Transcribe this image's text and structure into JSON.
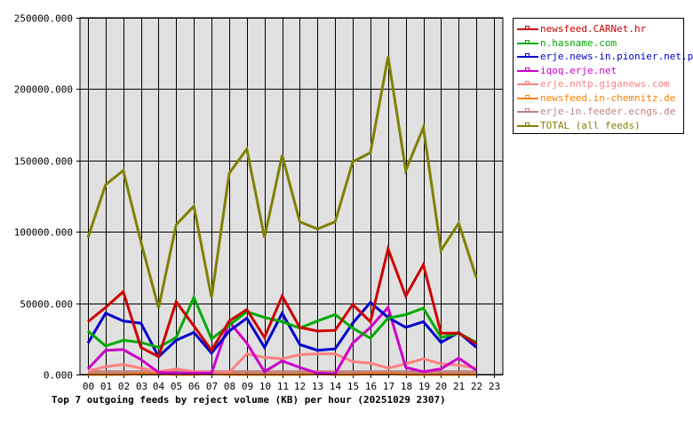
{
  "chart_data": {
    "type": "line",
    "title": "Top 7 outgoing feeds by reject volume (KB) per hour (20251029 2307)",
    "xlabel": "",
    "ylabel": "",
    "ylim": [
      0,
      250000
    ],
    "yticks": [
      "0.000",
      "50000.000",
      "100000.000",
      "150000.000",
      "200000.000",
      "250000.000"
    ],
    "ytick_values": [
      0,
      50000,
      100000,
      150000,
      200000,
      250000
    ],
    "categories": [
      "00",
      "01",
      "02",
      "03",
      "04",
      "05",
      "06",
      "07",
      "08",
      "09",
      "10",
      "11",
      "12",
      "13",
      "14",
      "15",
      "16",
      "17",
      "18",
      "19",
      "20",
      "21",
      "22",
      "23"
    ],
    "grid": true,
    "legend_position": "right",
    "series": [
      {
        "name": "newsfeed.CARNet.hr",
        "color": "#cc0000",
        "values": [
          37000,
          47000,
          58000,
          19000,
          12500,
          51000,
          34000,
          17000,
          37500,
          45500,
          26000,
          55000,
          33000,
          30500,
          31000,
          49000,
          37000,
          88000,
          55000,
          77000,
          29000,
          29000,
          21500
        ]
      },
      {
        "name": "n.hasname.com",
        "color": "#00aa00",
        "values": [
          30500,
          20000,
          24000,
          22500,
          19000,
          26000,
          54000,
          25000,
          34500,
          44000,
          40000,
          37000,
          32500,
          37500,
          42000,
          32500,
          25500,
          39500,
          42000,
          46500,
          26000,
          29000,
          22500
        ]
      },
      {
        "name": "erje.news-in.pionier.net.pl",
        "color": "#0000cc",
        "values": [
          22000,
          43000,
          37500,
          36000,
          12500,
          24000,
          29500,
          15000,
          30500,
          39500,
          19000,
          43000,
          21000,
          17000,
          18000,
          36000,
          50500,
          40000,
          33000,
          37000,
          22500,
          29500,
          19000
        ]
      },
      {
        "name": "iqoq.erje.net",
        "color": "#cc00cc",
        "values": [
          4000,
          17000,
          17500,
          10500,
          1500,
          1000,
          1000,
          1000,
          37000,
          22000,
          2000,
          9500,
          5000,
          1000,
          500,
          22000,
          33000,
          47000,
          5000,
          2000,
          4000,
          11500,
          3000
        ]
      },
      {
        "name": "erje.nntp.giganews.com",
        "color": "#ff8080",
        "values": [
          2500,
          5500,
          7000,
          4500,
          2000,
          4000,
          2000,
          1500,
          1500,
          14500,
          12000,
          11000,
          14000,
          14500,
          14500,
          9000,
          8000,
          4500,
          7500,
          11000,
          7500,
          6500,
          4500
        ]
      },
      {
        "name": "newsfeed.in-chemnitz.de",
        "color": "#ff8000",
        "values": [
          0,
          0,
          0,
          500,
          500,
          0,
          0,
          500,
          0,
          0,
          0,
          0,
          0,
          500,
          0,
          0,
          500,
          500,
          0,
          0,
          0,
          0,
          0
        ]
      },
      {
        "name": "erje-in.feeder.ecngs.de",
        "color": "#c08080",
        "values": [
          2000,
          2000,
          2000,
          2000,
          2000,
          2000,
          2000,
          2000,
          2000,
          2000,
          2000,
          2000,
          2000,
          2000,
          2000,
          2000,
          2000,
          2000,
          2000,
          2000,
          2000,
          2000,
          2000
        ]
      },
      {
        "name": "TOTAL (all feeds)",
        "color": "#808000",
        "values": [
          96000,
          133000,
          143000,
          93000,
          46600,
          105000,
          118000,
          54000,
          141000,
          158000,
          96000,
          153600,
          107000,
          102000,
          107000,
          149000,
          155500,
          222700,
          143000,
          173000,
          87000,
          106000,
          68000
        ]
      }
    ]
  },
  "colors": {
    "plot_background": "#e0e0e0",
    "grid": "#000000",
    "page_background": "#ffffff"
  }
}
